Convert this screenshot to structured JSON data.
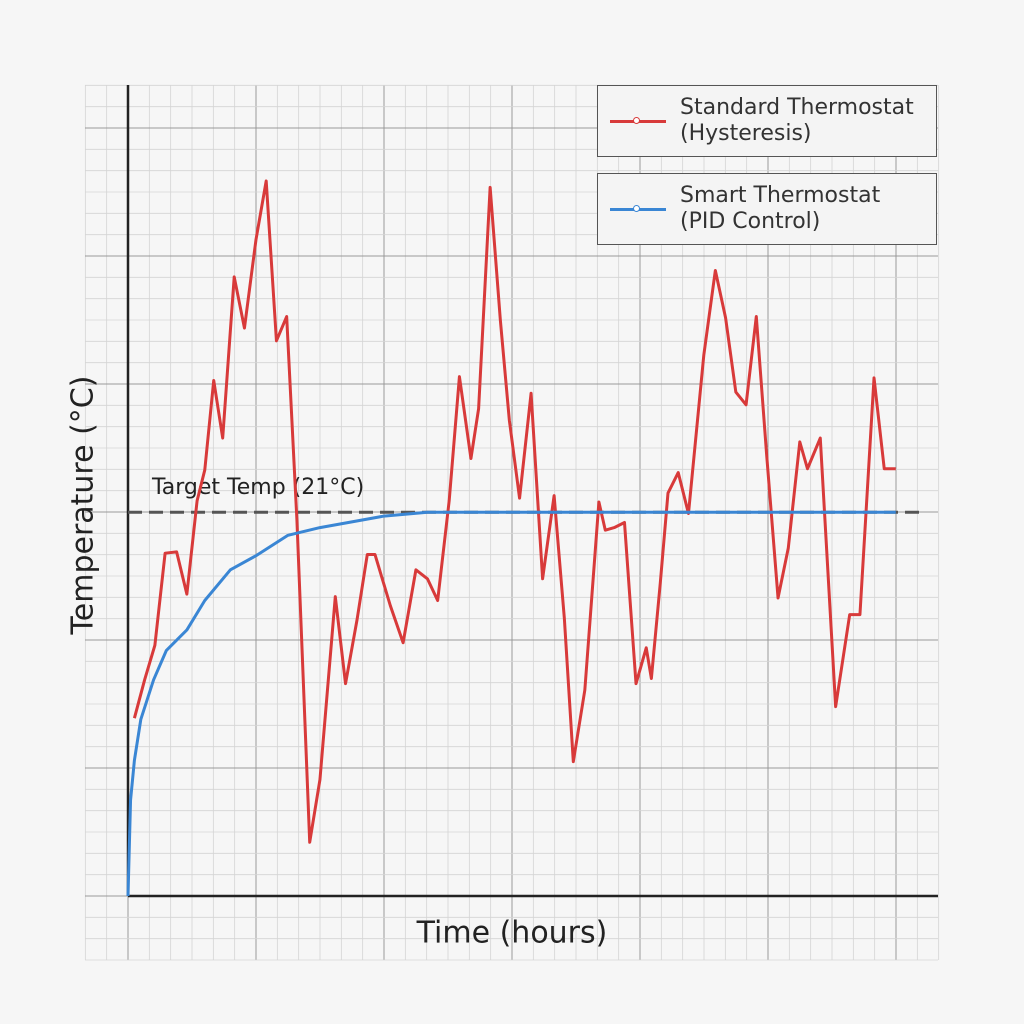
{
  "chart_data": {
    "type": "line",
    "x_label": "Time (hours)",
    "y_label": "Temperature (°C)",
    "xlim": [
      0,
      6.33
    ],
    "ylim": [
      18,
      24.34
    ],
    "grid": true,
    "legend": "upper right",
    "target": {
      "value": 21,
      "label": "Target Temp (21°C)",
      "color": "#555555"
    },
    "series": [
      {
        "name": "Standard Thermostat (Hysteresis)",
        "color": "#d83a3a",
        "x": [
          0.05,
          0.13,
          0.21,
          0.29,
          0.38,
          0.46,
          0.54,
          0.6,
          0.67,
          0.74,
          0.83,
          0.91,
          1.0,
          1.08,
          1.16,
          1.24,
          1.32,
          1.42,
          1.5,
          1.62,
          1.7,
          1.79,
          1.87,
          1.93,
          2.05,
          2.15,
          2.25,
          2.34,
          2.42,
          2.51,
          2.59,
          2.68,
          2.74,
          2.83,
          2.91,
          2.98,
          3.06,
          3.15,
          3.24,
          3.33,
          3.41,
          3.48,
          3.57,
          3.68,
          3.73,
          3.8,
          3.88,
          3.97,
          4.05,
          4.09,
          4.16,
          4.22,
          4.3,
          4.38,
          4.5,
          4.59,
          4.67,
          4.75,
          4.83,
          4.91,
          4.99,
          5.08,
          5.16,
          5.25,
          5.31,
          5.41,
          5.53,
          5.64,
          5.72,
          5.83,
          5.91,
          6.0
        ],
        "values": [
          19.39,
          19.69,
          19.96,
          20.68,
          20.69,
          20.36,
          21.09,
          21.33,
          22.03,
          21.58,
          22.84,
          22.44,
          23.13,
          23.59,
          22.34,
          22.53,
          20.94,
          18.42,
          18.91,
          20.34,
          19.66,
          20.16,
          20.67,
          20.67,
          20.27,
          19.98,
          20.55,
          20.48,
          20.31,
          21.09,
          22.06,
          21.42,
          21.81,
          23.54,
          22.5,
          21.72,
          21.11,
          21.93,
          20.48,
          21.13,
          20.17,
          19.05,
          19.61,
          21.08,
          20.86,
          20.88,
          20.92,
          19.66,
          19.94,
          19.7,
          20.45,
          21.15,
          21.31,
          20.99,
          22.23,
          22.89,
          22.52,
          21.94,
          21.84,
          22.53,
          21.46,
          20.33,
          20.72,
          21.55,
          21.34,
          21.58,
          19.48,
          20.2,
          20.2,
          22.05,
          21.34,
          21.34
        ]
      },
      {
        "name": "Smart Thermostat (PID Control)",
        "color": "#3a86d4",
        "x": [
          0,
          0.02,
          0.05,
          0.1,
          0.2,
          0.3,
          0.46,
          0.6,
          0.8,
          1.0,
          1.25,
          1.5,
          2.0,
          2.34,
          3.0,
          4.0,
          5.0,
          6.0
        ],
        "values": [
          18,
          18.75,
          19.06,
          19.38,
          19.69,
          19.92,
          20.08,
          20.31,
          20.55,
          20.66,
          20.82,
          20.88,
          20.97,
          21,
          21,
          21,
          21,
          21
        ]
      }
    ]
  }
}
